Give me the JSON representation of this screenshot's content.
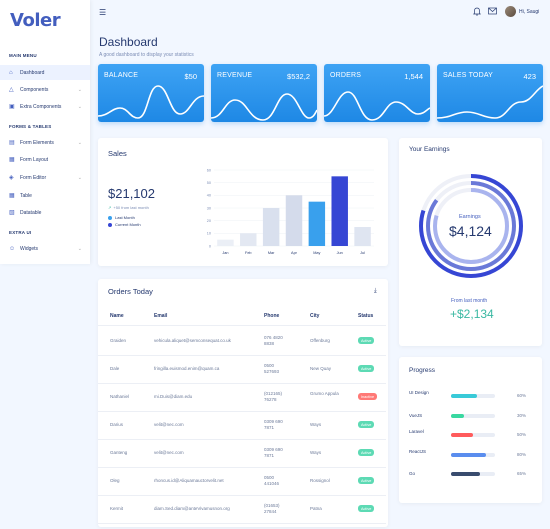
{
  "app": {
    "logo": "Voler"
  },
  "sidebar": {
    "sections": [
      "MAIN MENU",
      "FORMS & TABLES",
      "EXTRA UI"
    ],
    "items": [
      {
        "label": "Dashboard",
        "icon": "home-icon",
        "active": true,
        "has_children": false
      },
      {
        "label": "Components",
        "icon": "triangle-icon",
        "active": false,
        "has_children": true
      },
      {
        "label": "Extra Components",
        "icon": "briefcase-icon",
        "active": false,
        "has_children": true
      },
      {
        "label": "Form Elements",
        "icon": "file-text-icon",
        "active": false,
        "has_children": true
      },
      {
        "label": "Form Layout",
        "icon": "layout-icon",
        "active": false,
        "has_children": false
      },
      {
        "label": "Form Editor",
        "icon": "layers-icon",
        "active": false,
        "has_children": true
      },
      {
        "label": "Table",
        "icon": "grid-icon",
        "active": false,
        "has_children": false
      },
      {
        "label": "Datatable",
        "icon": "file-plus-icon",
        "active": false,
        "has_children": false
      },
      {
        "label": "Widgets",
        "icon": "user-icon",
        "active": false,
        "has_children": true
      }
    ]
  },
  "topbar": {
    "menu_icon": "menu-icon",
    "bell_icon": "bell-icon",
    "mail_icon": "mail-icon",
    "username": "Hi, Saugi"
  },
  "page": {
    "title": "Dashboard",
    "subtitle": "A good dashboard to display your statistics"
  },
  "stats": [
    {
      "label": "BALANCE",
      "value": "$50"
    },
    {
      "label": "REVENUE",
      "value": "$532,2"
    },
    {
      "label": "ORDERS",
      "value": "1,544"
    },
    {
      "label": "SALES TODAY",
      "value": "423"
    }
  ],
  "sales": {
    "title": "Sales",
    "total": "$21,102",
    "subtext": "+50 from last month",
    "legend": [
      {
        "label": "Last Month",
        "color": "#39a0ed"
      },
      {
        "label": "Current Month",
        "color": "#3646d4"
      }
    ]
  },
  "chart_data": {
    "type": "bar",
    "categories": [
      "Jan",
      "Feb",
      "Mar",
      "Apr",
      "May",
      "Jun",
      "Jul"
    ],
    "values": [
      5,
      10,
      30,
      40,
      35,
      55,
      15
    ],
    "ylim": [
      0,
      60
    ],
    "yticks": [
      0,
      10,
      20,
      30,
      40,
      50,
      60
    ],
    "grid": true,
    "colors": [
      "#ebeff6",
      "#e3e8f2",
      "#d9e0ee",
      "#d4dbeb",
      "#39a0ed",
      "#3646d4",
      "#dfe5f1"
    ]
  },
  "orders": {
    "title": "Orders Today",
    "download_icon": "download-icon",
    "columns": [
      "Name",
      "Email",
      "Phone",
      "City",
      "Status"
    ],
    "rows": [
      {
        "name": "Graiden",
        "email": "vehicula.aliquet@semconsequat.co.uk",
        "phone": "076 4820 8838",
        "city": "Offenburg",
        "status": "Active"
      },
      {
        "name": "Dale",
        "email": "fringilla.euismod.enim@quam.ca",
        "phone": "0500 527693",
        "city": "New Quay",
        "status": "Active"
      },
      {
        "name": "Nathaniel",
        "email": "mi.Duis@diam.edu",
        "phone": "(012165) 76278",
        "city": "Grumo Appula",
        "status": "Inactive"
      },
      {
        "name": "Darius",
        "email": "velit@nec.com",
        "phone": "0309 690 7871",
        "city": "Ways",
        "status": "Active"
      },
      {
        "name": "Ganteng",
        "email": "velit@nec.com",
        "phone": "0309 690 7871",
        "city": "Ways",
        "status": "Active"
      },
      {
        "name": "Oleg",
        "email": "rhoncus.id@Aliquamauctorvelit.net",
        "phone": "0500 441046",
        "city": "Rossignol",
        "status": "Active"
      },
      {
        "name": "Kermit",
        "email": "diam.Sed.diam@anteVivamusnon.org",
        "phone": "(01653) 27844",
        "city": "Patna",
        "status": "Active"
      }
    ]
  },
  "earnings": {
    "title": "Your Earnings",
    "label": "Earnings",
    "value": "$4,124",
    "from_text": "From last month",
    "growth": "+$2,134"
  },
  "progress": {
    "title": "Progress",
    "items": [
      {
        "label": "UI Design",
        "percent": 60,
        "pct_label": "60%",
        "color": "#39cad8"
      },
      {
        "label": "VueJS",
        "percent": 30,
        "pct_label": "30%",
        "color": "#39d8a0"
      },
      {
        "label": "Laravel",
        "percent": 50,
        "pct_label": "50%",
        "color": "#ff5b5c"
      },
      {
        "label": "ReactJS",
        "percent": 80,
        "pct_label": "80%",
        "color": "#5a8dee"
      },
      {
        "label": "Go",
        "percent": 65,
        "pct_label": "65%",
        "color": "#394c6e"
      }
    ]
  }
}
